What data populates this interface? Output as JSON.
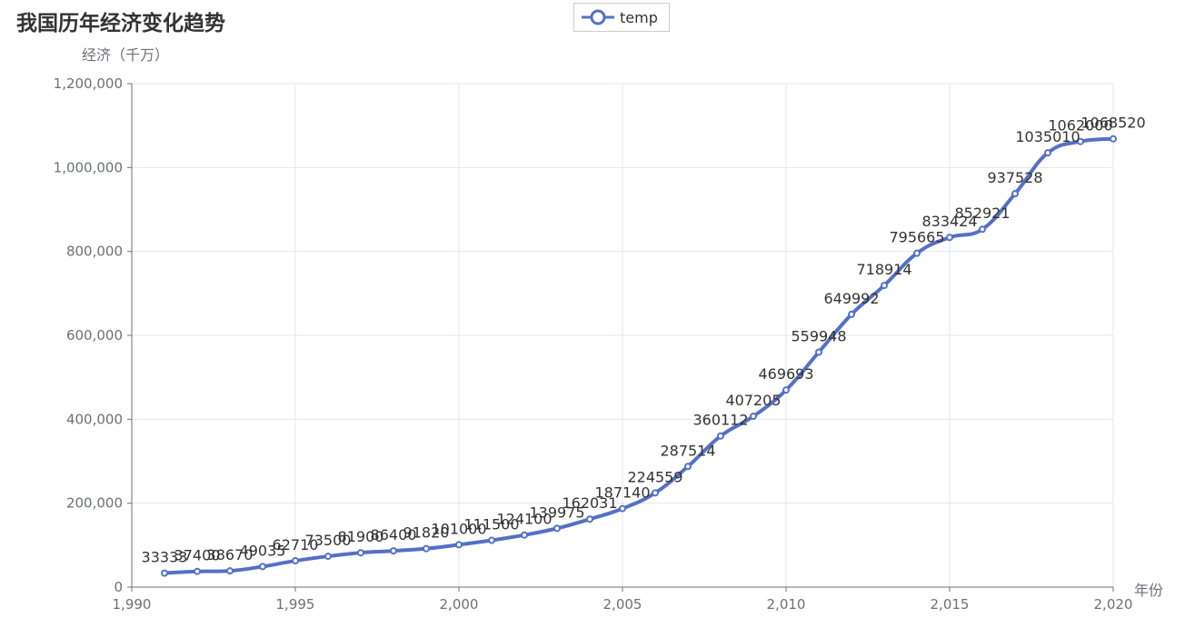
{
  "title": "我国历年经济变化趋势",
  "legend": {
    "label": "temp"
  },
  "colors": {
    "series": "#5470c6",
    "grid": "#e0e6f1",
    "axis": "#6e7079",
    "text": "#333333"
  },
  "chart_data": {
    "type": "line",
    "title": "我国历年经济变化趋势",
    "ylabel": "经济（千万）",
    "xlabel": "年份",
    "xlim": [
      1990,
      2020
    ],
    "ylim": [
      0,
      1200000
    ],
    "x_ticks": [
      "1,990",
      "1,995",
      "2,000",
      "2,005",
      "2,010",
      "2,015",
      "2,020"
    ],
    "y_ticks": [
      "0",
      "200,000",
      "400,000",
      "600,000",
      "800,000",
      "1,000,000",
      "1,200,000"
    ],
    "grid": true,
    "smooth": true,
    "legend_position": "top-center",
    "series": [
      {
        "name": "temp",
        "x": [
          1991,
          1992,
          1993,
          1994,
          1995,
          1996,
          1997,
          1998,
          1999,
          2000,
          2001,
          2002,
          2003,
          2004,
          2005,
          2006,
          2007,
          2008,
          2009,
          2010,
          2011,
          2012,
          2013,
          2014,
          2015,
          2016,
          2017,
          2018,
          2019,
          2020
        ],
        "values": [
          33333,
          37400,
          38670,
          49035,
          62710,
          73500,
          81900,
          86400,
          91820,
          101000,
          111500,
          124100,
          139975,
          162031,
          187140,
          224559,
          287514,
          360112,
          407205,
          469693,
          559948,
          649992,
          718914,
          795665,
          833424,
          852921,
          937528,
          1035010,
          1062000,
          1068520
        ]
      }
    ]
  }
}
